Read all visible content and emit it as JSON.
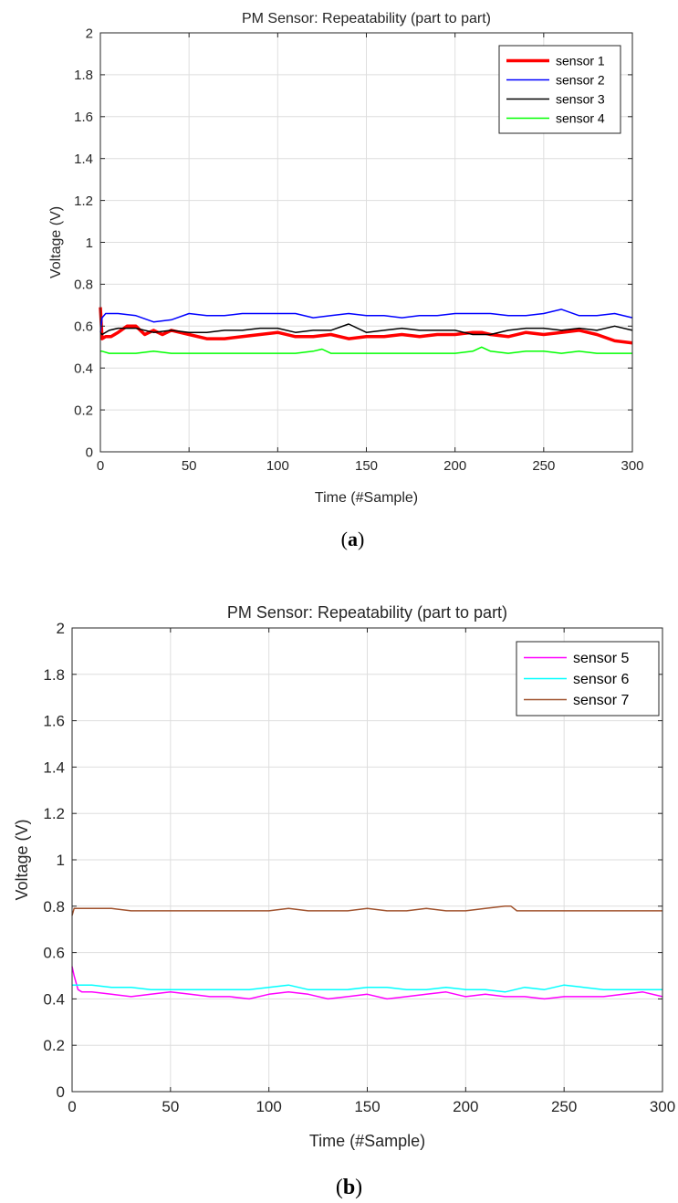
{
  "chart_data": [
    {
      "type": "line",
      "panel": "a",
      "caption_letter": "a",
      "title": "PM Sensor: Repeatability (part to part)",
      "xlabel": "Time (#Sample)",
      "ylabel": "Voltage (V)",
      "xlim": [
        0,
        300
      ],
      "ylim": [
        0,
        2
      ],
      "xticks": [
        0,
        50,
        100,
        150,
        200,
        250,
        300
      ],
      "yticks": [
        0,
        0.2,
        0.4,
        0.6,
        0.8,
        1,
        1.2,
        1.4,
        1.6,
        1.8,
        2
      ],
      "grid": true,
      "legend_position": "top-right",
      "series": [
        {
          "name": "sensor 1",
          "color": "#ff0000",
          "width": "thick",
          "x": [
            0,
            1,
            3,
            6,
            10,
            15,
            20,
            25,
            30,
            35,
            40,
            50,
            60,
            70,
            80,
            90,
            100,
            110,
            120,
            130,
            140,
            150,
            160,
            170,
            180,
            190,
            200,
            210,
            215,
            220,
            230,
            240,
            250,
            260,
            270,
            280,
            290,
            300
          ],
          "y": [
            0.69,
            0.54,
            0.55,
            0.55,
            0.57,
            0.6,
            0.6,
            0.56,
            0.58,
            0.56,
            0.58,
            0.56,
            0.54,
            0.54,
            0.55,
            0.56,
            0.57,
            0.55,
            0.55,
            0.56,
            0.54,
            0.55,
            0.55,
            0.56,
            0.55,
            0.56,
            0.56,
            0.57,
            0.57,
            0.56,
            0.55,
            0.57,
            0.56,
            0.57,
            0.58,
            0.56,
            0.53,
            0.52
          ]
        },
        {
          "name": "sensor 2",
          "color": "#0000ff",
          "width": "thin",
          "x": [
            0,
            1,
            3,
            10,
            20,
            30,
            40,
            50,
            60,
            70,
            80,
            90,
            100,
            110,
            120,
            130,
            140,
            150,
            160,
            170,
            180,
            190,
            200,
            210,
            220,
            230,
            240,
            250,
            260,
            270,
            280,
            290,
            300
          ],
          "y": [
            0.57,
            0.64,
            0.66,
            0.66,
            0.65,
            0.62,
            0.63,
            0.66,
            0.65,
            0.65,
            0.66,
            0.66,
            0.66,
            0.66,
            0.64,
            0.65,
            0.66,
            0.65,
            0.65,
            0.64,
            0.65,
            0.65,
            0.66,
            0.66,
            0.66,
            0.65,
            0.65,
            0.66,
            0.68,
            0.65,
            0.65,
            0.66,
            0.64
          ]
        },
        {
          "name": "sensor 3",
          "color": "#000000",
          "width": "thin",
          "x": [
            0,
            1,
            5,
            10,
            20,
            30,
            40,
            50,
            60,
            70,
            80,
            90,
            100,
            110,
            120,
            130,
            140,
            150,
            160,
            170,
            180,
            190,
            200,
            210,
            220,
            230,
            240,
            250,
            260,
            270,
            280,
            290,
            300
          ],
          "y": [
            0.57,
            0.56,
            0.58,
            0.59,
            0.59,
            0.57,
            0.58,
            0.57,
            0.57,
            0.58,
            0.58,
            0.59,
            0.59,
            0.57,
            0.58,
            0.58,
            0.61,
            0.57,
            0.58,
            0.59,
            0.58,
            0.58,
            0.58,
            0.56,
            0.56,
            0.58,
            0.59,
            0.59,
            0.58,
            0.59,
            0.58,
            0.6,
            0.58
          ]
        },
        {
          "name": "sensor 4",
          "color": "#00ff00",
          "width": "thin",
          "x": [
            0,
            1,
            5,
            10,
            20,
            30,
            40,
            50,
            60,
            70,
            80,
            90,
            100,
            110,
            120,
            125,
            130,
            140,
            150,
            160,
            170,
            180,
            190,
            200,
            210,
            215,
            220,
            230,
            240,
            250,
            260,
            270,
            280,
            290,
            300
          ],
          "y": [
            0.48,
            0.48,
            0.47,
            0.47,
            0.47,
            0.48,
            0.47,
            0.47,
            0.47,
            0.47,
            0.47,
            0.47,
            0.47,
            0.47,
            0.48,
            0.49,
            0.47,
            0.47,
            0.47,
            0.47,
            0.47,
            0.47,
            0.47,
            0.47,
            0.48,
            0.5,
            0.48,
            0.47,
            0.48,
            0.48,
            0.47,
            0.48,
            0.47,
            0.47,
            0.47
          ]
        }
      ]
    },
    {
      "type": "line",
      "panel": "b",
      "caption_letter": "b",
      "title": "PM Sensor: Repeatability (part to part)",
      "xlabel": "Time (#Sample)",
      "ylabel": "Voltage (V)",
      "xlim": [
        0,
        300
      ],
      "ylim": [
        0,
        2
      ],
      "xticks": [
        0,
        50,
        100,
        150,
        200,
        250,
        300
      ],
      "yticks": [
        0,
        0.2,
        0.4,
        0.6,
        0.8,
        1,
        1.2,
        1.4,
        1.6,
        1.8,
        2
      ],
      "grid": true,
      "legend_position": "top-right",
      "series": [
        {
          "name": "sensor 5",
          "color": "#ff00ff",
          "width": "thin",
          "x": [
            0,
            1,
            3,
            5,
            10,
            20,
            30,
            40,
            50,
            60,
            70,
            80,
            90,
            100,
            110,
            120,
            130,
            140,
            150,
            160,
            170,
            180,
            190,
            200,
            210,
            220,
            230,
            240,
            250,
            260,
            270,
            280,
            290,
            300
          ],
          "y": [
            0.54,
            0.5,
            0.44,
            0.43,
            0.43,
            0.42,
            0.41,
            0.42,
            0.43,
            0.42,
            0.41,
            0.41,
            0.4,
            0.42,
            0.43,
            0.42,
            0.4,
            0.41,
            0.42,
            0.4,
            0.41,
            0.42,
            0.43,
            0.41,
            0.42,
            0.41,
            0.41,
            0.4,
            0.41,
            0.41,
            0.41,
            0.42,
            0.43,
            0.41
          ]
        },
        {
          "name": "sensor 6",
          "color": "#00ffff",
          "width": "thin",
          "x": [
            0,
            1,
            5,
            10,
            20,
            30,
            40,
            50,
            60,
            70,
            80,
            90,
            100,
            110,
            120,
            130,
            140,
            150,
            160,
            170,
            180,
            190,
            200,
            210,
            220,
            230,
            240,
            250,
            260,
            270,
            280,
            290,
            300
          ],
          "y": [
            0.46,
            0.46,
            0.46,
            0.46,
            0.45,
            0.45,
            0.44,
            0.44,
            0.44,
            0.44,
            0.44,
            0.44,
            0.45,
            0.46,
            0.44,
            0.44,
            0.44,
            0.45,
            0.45,
            0.44,
            0.44,
            0.45,
            0.44,
            0.44,
            0.43,
            0.45,
            0.44,
            0.46,
            0.45,
            0.44,
            0.44,
            0.44,
            0.44
          ]
        },
        {
          "name": "sensor 7",
          "color": "#a0522d",
          "width": "thin",
          "x": [
            0,
            1,
            3,
            10,
            20,
            30,
            40,
            50,
            60,
            70,
            80,
            90,
            100,
            110,
            120,
            130,
            140,
            150,
            160,
            170,
            180,
            190,
            200,
            210,
            220,
            223,
            226,
            230,
            240,
            250,
            260,
            270,
            280,
            290,
            300
          ],
          "y": [
            0.76,
            0.79,
            0.79,
            0.79,
            0.79,
            0.78,
            0.78,
            0.78,
            0.78,
            0.78,
            0.78,
            0.78,
            0.78,
            0.79,
            0.78,
            0.78,
            0.78,
            0.79,
            0.78,
            0.78,
            0.79,
            0.78,
            0.78,
            0.79,
            0.8,
            0.8,
            0.78,
            0.78,
            0.78,
            0.78,
            0.78,
            0.78,
            0.78,
            0.78,
            0.78
          ]
        }
      ]
    }
  ]
}
